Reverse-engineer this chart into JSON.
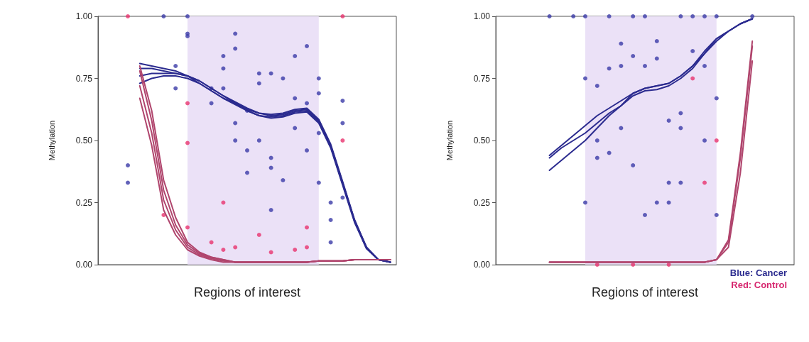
{
  "chart_data": [
    {
      "type": "scatter",
      "xlabel": "Regions of interest",
      "ylabel": "Methylation",
      "categories": [
        null,
        null,
        null,
        null,
        null,
        null,
        null,
        null,
        null,
        null,
        null,
        null,
        null,
        null,
        null,
        null,
        null,
        null,
        null,
        null,
        null,
        null,
        null,
        null,
        null
      ],
      "ylim": [
        0,
        1
      ],
      "yticks": [
        {
          "value": 0,
          "label": "0.00"
        },
        {
          "value": 0.25,
          "label": "0.25"
        },
        {
          "value": 0.5,
          "label": "0.50"
        },
        {
          "value": 0.75,
          "label": "0.75"
        },
        {
          "value": 1,
          "label": "1.00"
        }
      ],
      "tick_labels": "y",
      "marker": "circle",
      "series": [
        {
          "type": "area",
          "marker": "none",
          "color": "#ebe1f7",
          "values": [
            null,
            null,
            null,
            null,
            null,
            null,
            null,
            1,
            1,
            1,
            1,
            1,
            1,
            1,
            1,
            1,
            1,
            1,
            1,
            null,
            null,
            null,
            null,
            null,
            null
          ]
        },
        {
          "color": "#3b3ba8",
          "values": [
            null,
            null,
            0.33,
            null,
            null,
            1,
            0.8,
            1,
            null,
            0.71,
            0.84,
            0.93,
            0.46,
            0.5,
            0.39,
            0.75,
            0.84,
            0.88,
            0.75,
            0.25,
            0.57,
            null,
            null,
            null,
            null
          ]
        },
        {
          "color": "#3b3ba8",
          "values": [
            null,
            null,
            0.4,
            null,
            null,
            null,
            0.71,
            0.93,
            null,
            0.65,
            0.79,
            0.87,
            0.37,
            0.73,
            0.22,
            0.34,
            0.67,
            0.46,
            0.33,
            0.09,
            0.66,
            null,
            null,
            null,
            null
          ]
        },
        {
          "color": "#3b3ba8",
          "values": [
            null,
            null,
            null,
            null,
            null,
            null,
            null,
            0.92,
            null,
            null,
            0.71,
            0.57,
            0.62,
            0.77,
            0.77,
            null,
            0.55,
            0.65,
            0.69,
            0.18,
            0.27,
            null,
            null,
            null,
            null
          ]
        },
        {
          "color": "#3b3ba8",
          "values": [
            null,
            null,
            null,
            null,
            null,
            null,
            null,
            null,
            null,
            null,
            null,
            0.5,
            null,
            null,
            0.43,
            null,
            null,
            null,
            0.53,
            null,
            null,
            null,
            null,
            null,
            null
          ]
        },
        {
          "color": "#e8336e",
          "values": [
            null,
            null,
            1,
            null,
            null,
            0.2,
            null,
            0.65,
            null,
            0.09,
            0.25,
            0.07,
            null,
            0.12,
            0.05,
            null,
            0.06,
            0.15,
            null,
            null,
            0.5,
            null,
            null,
            null,
            null
          ]
        },
        {
          "color": "#e8336e",
          "values": [
            null,
            null,
            null,
            null,
            null,
            null,
            null,
            0.49,
            null,
            null,
            0.06,
            null,
            null,
            null,
            null,
            null,
            null,
            0.07,
            null,
            null,
            1,
            null,
            null,
            null,
            null
          ]
        },
        {
          "color": "#e8336e",
          "values": [
            null,
            null,
            null,
            null,
            null,
            null,
            null,
            0.15,
            null,
            null,
            null,
            null,
            null,
            null,
            null,
            null,
            null,
            null,
            null,
            null,
            null,
            null,
            null,
            null,
            null
          ]
        },
        {
          "type": "line",
          "marker": "none",
          "color": "#2b2b8f",
          "values": [
            null,
            null,
            null,
            0.81,
            0.8,
            0.79,
            0.78,
            0.76,
            0.74,
            0.71,
            0.68,
            0.655,
            0.63,
            0.61,
            0.6,
            0.605,
            0.62,
            0.625,
            0.58,
            0.48,
            0.33,
            0.18,
            0.07,
            0.02,
            0.01
          ]
        },
        {
          "type": "line",
          "marker": "none",
          "color": "#2b2b8f",
          "values": [
            null,
            null,
            null,
            0.79,
            0.79,
            0.78,
            0.77,
            0.76,
            0.74,
            0.71,
            0.68,
            0.65,
            0.625,
            0.61,
            0.605,
            0.61,
            0.625,
            0.63,
            0.585,
            0.485,
            0.335,
            0.18,
            0.07,
            0.02,
            0.01
          ]
        },
        {
          "type": "line",
          "marker": "none",
          "color": "#2b2b8f",
          "values": [
            null,
            null,
            null,
            0.76,
            0.77,
            0.77,
            0.77,
            0.76,
            0.73,
            0.7,
            0.67,
            0.65,
            0.62,
            0.6,
            0.595,
            0.6,
            0.615,
            0.62,
            0.575,
            0.475,
            0.325,
            0.175,
            0.065,
            0.02,
            0.01
          ]
        },
        {
          "type": "line",
          "marker": "none",
          "color": "#2b2b8f",
          "values": [
            null,
            null,
            null,
            0.73,
            0.75,
            0.76,
            0.76,
            0.75,
            0.73,
            0.7,
            0.67,
            0.645,
            0.62,
            0.6,
            0.59,
            0.595,
            0.61,
            0.615,
            0.57,
            0.47,
            0.32,
            0.17,
            0.065,
            0.02,
            0.01
          ]
        },
        {
          "type": "line",
          "marker": "none",
          "color": "#b0456d",
          "values": [
            null,
            null,
            null,
            0.8,
            0.62,
            0.34,
            0.19,
            0.09,
            0.05,
            0.03,
            0.02,
            0.01,
            0.01,
            0.01,
            0.01,
            0.01,
            0.01,
            0.01,
            0.015,
            0.015,
            0.015,
            0.02,
            0.02,
            0.02,
            0.02
          ]
        },
        {
          "type": "line",
          "marker": "none",
          "color": "#b0456d",
          "values": [
            null,
            null,
            null,
            0.78,
            0.58,
            0.3,
            0.16,
            0.08,
            0.045,
            0.03,
            0.02,
            0.01,
            0.01,
            0.01,
            0.01,
            0.01,
            0.01,
            0.01,
            0.015,
            0.015,
            0.015,
            0.02,
            0.02,
            0.02,
            0.02
          ]
        },
        {
          "type": "line",
          "marker": "none",
          "color": "#b0456d",
          "values": [
            null,
            null,
            null,
            0.72,
            0.53,
            0.26,
            0.14,
            0.07,
            0.04,
            0.025,
            0.015,
            0.01,
            0.01,
            0.01,
            0.01,
            0.01,
            0.01,
            0.01,
            0.015,
            0.015,
            0.015,
            0.02,
            0.02,
            0.02,
            0.02
          ]
        },
        {
          "type": "line",
          "marker": "none",
          "color": "#b0456d",
          "values": [
            null,
            null,
            null,
            0.67,
            0.48,
            0.22,
            0.12,
            0.06,
            0.035,
            0.02,
            0.01,
            0.01,
            0.01,
            0.01,
            0.01,
            0.01,
            0.01,
            0.01,
            0.015,
            0.015,
            0.015,
            0.02,
            0.02,
            0.02,
            0.02
          ]
        }
      ]
    },
    {
      "type": "scatter",
      "xlabel": "Regions of interest",
      "ylabel": "Methylation",
      "categories": [
        null,
        null,
        null,
        null,
        null,
        null,
        null,
        null,
        null,
        null,
        null,
        null,
        null,
        null,
        null,
        null,
        null,
        null,
        null,
        null,
        null,
        null,
        null,
        null,
        null
      ],
      "ylim": [
        0,
        1
      ],
      "yticks": [
        {
          "value": 0,
          "label": "0.00"
        },
        {
          "value": 0.25,
          "label": "0.25"
        },
        {
          "value": 0.5,
          "label": "0.50"
        },
        {
          "value": 0.75,
          "label": "0.75"
        },
        {
          "value": 1,
          "label": "1.00"
        }
      ],
      "tick_labels": "y",
      "marker": "circle",
      "annotations": [
        "Blue: Cancer",
        "Red: Control"
      ],
      "series": [
        {
          "type": "area",
          "marker": "none",
          "color": "#ebe1f7",
          "values": [
            null,
            null,
            null,
            null,
            null,
            null,
            null,
            1,
            1,
            1,
            1,
            1,
            1,
            1,
            1,
            1,
            1,
            1,
            1,
            null,
            null,
            null,
            null,
            null,
            null
          ]
        },
        {
          "color": "#3b3ba8",
          "values": [
            null,
            null,
            null,
            null,
            1,
            null,
            1,
            1,
            0.72,
            1,
            0.8,
            1,
            1,
            0.83,
            0.58,
            1,
            1,
            1,
            1,
            null,
            null,
            1,
            null,
            null,
            null
          ]
        },
        {
          "color": "#3b3ba8",
          "values": [
            null,
            null,
            null,
            null,
            null,
            null,
            null,
            0.75,
            0.5,
            0.79,
            0.89,
            0.84,
            0.8,
            0.25,
            0.33,
            0.61,
            0.86,
            0.5,
            0.2,
            null,
            null,
            null,
            null,
            null,
            null
          ]
        },
        {
          "color": "#3b3ba8",
          "values": [
            null,
            null,
            null,
            null,
            null,
            null,
            null,
            0.25,
            0.43,
            0.45,
            0.55,
            0.4,
            0.2,
            0.9,
            0.25,
            0.55,
            null,
            0.8,
            0.67,
            null,
            null,
            null,
            null,
            null,
            null
          ]
        },
        {
          "color": "#3b3ba8",
          "values": [
            null,
            null,
            null,
            null,
            null,
            null,
            null,
            null,
            null,
            null,
            null,
            null,
            null,
            null,
            null,
            0.33,
            null,
            null,
            null,
            null,
            null,
            null,
            null,
            null,
            null
          ]
        },
        {
          "color": "#e8336e",
          "values": [
            null,
            null,
            null,
            null,
            null,
            null,
            null,
            null,
            0,
            null,
            null,
            0,
            null,
            null,
            0,
            null,
            0.75,
            0.33,
            0.5,
            null,
            null,
            null,
            null,
            null,
            null
          ]
        },
        {
          "type": "line",
          "marker": "none",
          "color": "#2b2b8f",
          "values": [
            null,
            null,
            null,
            null,
            0.44,
            0.48,
            0.52,
            0.56,
            0.6,
            0.63,
            0.66,
            0.69,
            0.71,
            0.72,
            0.73,
            0.76,
            0.8,
            0.86,
            0.91,
            0.94,
            0.97,
            0.99,
            null,
            null,
            null
          ]
        },
        {
          "type": "line",
          "marker": "none",
          "color": "#2b2b8f",
          "values": [
            null,
            null,
            null,
            null,
            0.43,
            0.47,
            0.5,
            0.53,
            0.57,
            0.61,
            0.64,
            0.69,
            0.71,
            0.72,
            0.73,
            0.76,
            0.8,
            0.85,
            0.91,
            0.94,
            0.97,
            0.99,
            null,
            null,
            null
          ]
        },
        {
          "type": "line",
          "marker": "none",
          "color": "#2b2b8f",
          "values": [
            null,
            null,
            null,
            null,
            0.38,
            0.42,
            0.46,
            0.5,
            0.55,
            0.6,
            0.64,
            0.68,
            0.7,
            0.705,
            0.72,
            0.75,
            0.79,
            0.85,
            0.9,
            0.94,
            0.97,
            0.99,
            null,
            null,
            null
          ]
        },
        {
          "type": "line",
          "color": "#b0456d",
          "values": [
            null,
            null,
            null,
            null,
            0.01,
            0.01,
            0.01,
            0.01,
            0.01,
            0.01,
            0.01,
            0.01,
            0.01,
            0.01,
            0.01,
            0.01,
            0.01,
            0.01,
            0.02,
            0.1,
            0.45,
            0.9,
            null,
            null,
            null
          ],
          "marker": "none"
        },
        {
          "type": "line",
          "color": "#b0456d",
          "values": [
            null,
            null,
            null,
            null,
            0.01,
            0.01,
            0.01,
            0.01,
            0.01,
            0.01,
            0.01,
            0.01,
            0.01,
            0.01,
            0.01,
            0.01,
            0.01,
            0.01,
            0.02,
            0.09,
            0.43,
            0.88,
            null,
            null,
            null
          ],
          "marker": "none"
        },
        {
          "type": "line",
          "color": "#b0456d",
          "values": [
            null,
            null,
            null,
            null,
            0.01,
            0.01,
            0.01,
            0.01,
            0.01,
            0.01,
            0.01,
            0.01,
            0.01,
            0.01,
            0.01,
            0.01,
            0.01,
            0.01,
            0.02,
            0.07,
            0.37,
            0.82,
            null,
            null,
            null
          ],
          "marker": "none"
        }
      ]
    }
  ]
}
